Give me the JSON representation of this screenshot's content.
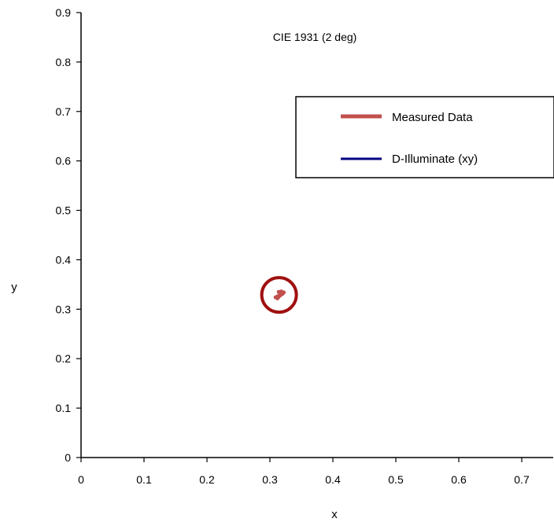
{
  "chart_data": {
    "type": "line",
    "title": "CIE 1931 (2 deg)",
    "xlabel": "x",
    "ylabel": "y",
    "xlim": [
      0,
      0.75
    ],
    "ylim": [
      0,
      0.9
    ],
    "x_ticks": [
      "0",
      "0.1",
      "0.2",
      "0.3",
      "0.4",
      "0.5",
      "0.6",
      "0.7"
    ],
    "y_ticks": [
      "0",
      "0.1",
      "0.2",
      "0.3",
      "0.4",
      "0.5",
      "0.6",
      "0.7",
      "0.8",
      "0.9"
    ],
    "grid": false,
    "legend_position": "top-right",
    "series": [
      {
        "name": "Measured Data",
        "color": "#c0504d",
        "points": [
          [
            0.309,
            0.324
          ],
          [
            0.312,
            0.326
          ],
          [
            0.315,
            0.328
          ],
          [
            0.318,
            0.33
          ],
          [
            0.32,
            0.331
          ],
          [
            0.316,
            0.333
          ],
          [
            0.314,
            0.335
          ],
          [
            0.318,
            0.336
          ],
          [
            0.322,
            0.334
          ],
          [
            0.312,
            0.322
          ]
        ]
      },
      {
        "name": "D-Illuminate (xy)",
        "color": "#000080",
        "points": []
      }
    ],
    "annotations": [
      {
        "type": "circle",
        "center": [
          0.3145,
          0.329
        ],
        "color": "#a01010"
      }
    ]
  }
}
